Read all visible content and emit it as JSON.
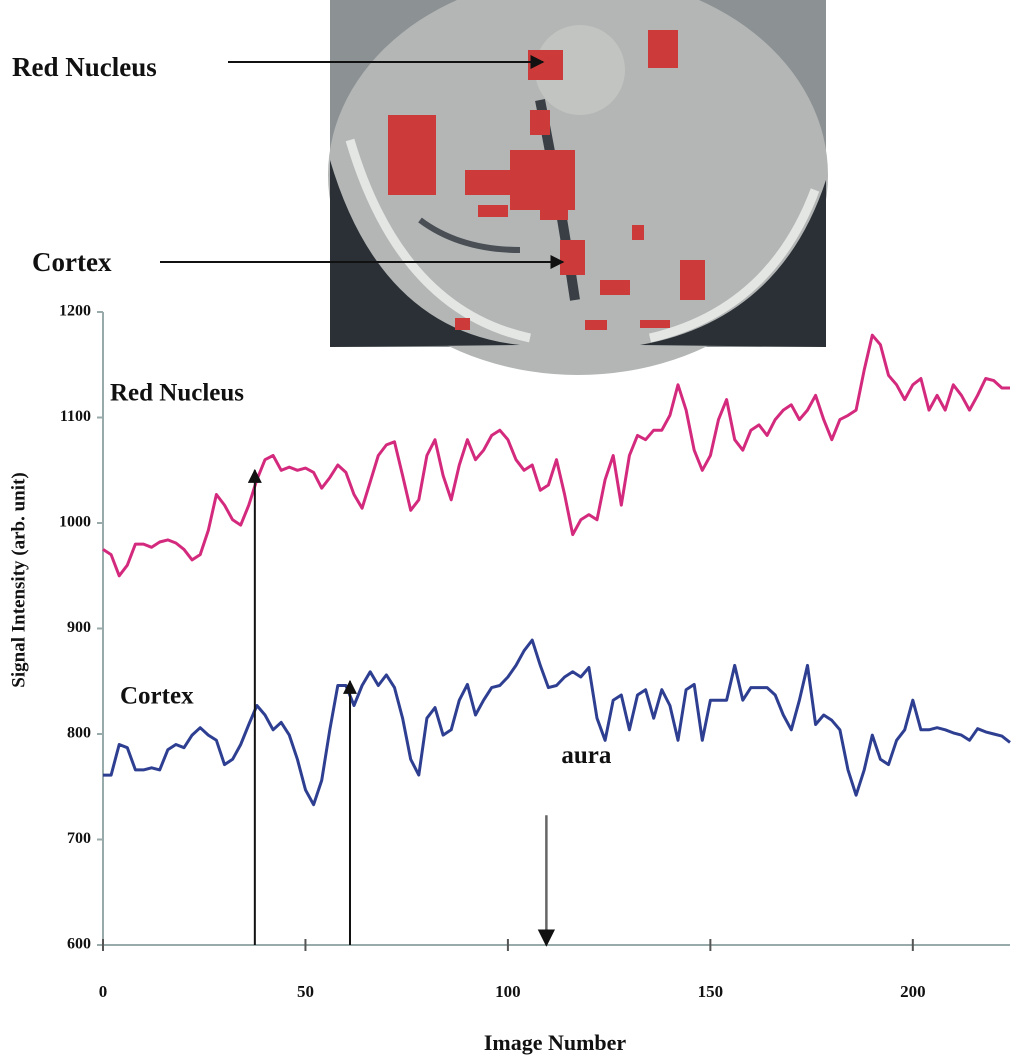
{
  "chart_data": {
    "type": "line",
    "xlabel": "Image Number",
    "ylabel": "Signal Intensity (arb. unit)",
    "image_labels": [
      "Red Nucleus",
      "Cortex"
    ],
    "x": [
      0,
      2,
      4,
      6,
      8,
      10,
      12,
      14,
      16,
      18,
      20,
      22,
      24,
      26,
      28,
      30,
      32,
      34,
      36,
      38,
      40,
      42,
      44,
      46,
      48,
      50,
      52,
      54,
      56,
      58,
      60,
      62,
      64,
      66,
      68,
      70,
      72,
      74,
      76,
      78,
      80,
      82,
      84,
      86,
      88,
      90,
      92,
      94,
      96,
      98,
      100,
      102,
      104,
      106,
      108,
      110,
      112,
      114,
      116,
      118,
      120,
      122,
      124,
      126,
      128,
      130,
      132,
      134,
      136,
      138,
      140,
      142,
      144,
      146,
      148,
      150,
      152,
      154,
      156,
      158,
      160,
      162,
      164,
      166,
      168,
      170,
      172,
      174,
      176,
      178,
      180,
      182,
      184,
      186,
      188,
      190,
      192,
      194,
      196,
      198,
      200,
      202,
      204,
      206,
      208,
      210,
      212,
      214,
      216,
      218,
      220,
      222,
      224
    ],
    "series": [
      {
        "name": "Red Nucleus",
        "color": "#d42a7e",
        "values": [
          975,
          970,
          950,
          960,
          980,
          980,
          977,
          982,
          984,
          981,
          975,
          965,
          970,
          993,
          1027,
          1017,
          1003,
          998,
          1017,
          1041,
          1060,
          1064,
          1050,
          1053,
          1050,
          1052,
          1048,
          1033,
          1043,
          1055,
          1048,
          1027,
          1014,
          1039,
          1064,
          1074,
          1077,
          1045,
          1012,
          1022,
          1064,
          1079,
          1045,
          1022,
          1055,
          1079,
          1060,
          1069,
          1083,
          1088,
          1079,
          1060,
          1050,
          1055,
          1031,
          1036,
          1060,
          1027,
          989,
          1003,
          1008,
          1003,
          1041,
          1064,
          1017,
          1064,
          1083,
          1079,
          1088,
          1088,
          1102,
          1131,
          1107,
          1069,
          1050,
          1064,
          1098,
          1117,
          1079,
          1069,
          1088,
          1093,
          1083,
          1098,
          1107,
          1112,
          1098,
          1107,
          1121,
          1098,
          1079,
          1098,
          1102,
          1107,
          1145,
          1178,
          1169,
          1140,
          1131,
          1117,
          1131,
          1137,
          1107,
          1121,
          1107,
          1131,
          1121,
          1107,
          1121,
          1137,
          1135,
          1128,
          1128
        ]
      },
      {
        "name": "Cortex",
        "color": "#2e3f92",
        "values": [
          761,
          761,
          790,
          787,
          766,
          766,
          768,
          766,
          785,
          790,
          787,
          799,
          806,
          799,
          794,
          771,
          776,
          790,
          809,
          827,
          818,
          804,
          811,
          799,
          776,
          747,
          733,
          756,
          804,
          846,
          846,
          827,
          846,
          859,
          846,
          856,
          844,
          815,
          776,
          761,
          815,
          825,
          799,
          804,
          832,
          847,
          818,
          832,
          844,
          846,
          854,
          865,
          879,
          889,
          865,
          844,
          846,
          854,
          859,
          854,
          863,
          815,
          794,
          832,
          837,
          804,
          837,
          842,
          815,
          842,
          827,
          794,
          842,
          847,
          794,
          832,
          832,
          832,
          865,
          832,
          844,
          844,
          844,
          837,
          818,
          804,
          832,
          865,
          809,
          818,
          813,
          804,
          766,
          742,
          766,
          799,
          776,
          771,
          794,
          804,
          832,
          804,
          804,
          806,
          804,
          801,
          799,
          794,
          805,
          802,
          800,
          798,
          792
        ]
      }
    ],
    "arrows": [
      {
        "x": 37.5,
        "from": 600,
        "to": 1050
      },
      {
        "x": 61,
        "from": 600,
        "to": 850
      }
    ],
    "annotations": [
      {
        "text": "aura",
        "x": 109.5,
        "from": 723,
        "to": 600
      }
    ],
    "xlim": [
      0,
      224
    ],
    "xticks": [
      0,
      50,
      100,
      150,
      200
    ],
    "ylim": [
      600,
      1200
    ],
    "yticks": [
      600,
      700,
      800,
      900,
      1000,
      1100,
      1200
    ],
    "grid": false
  }
}
